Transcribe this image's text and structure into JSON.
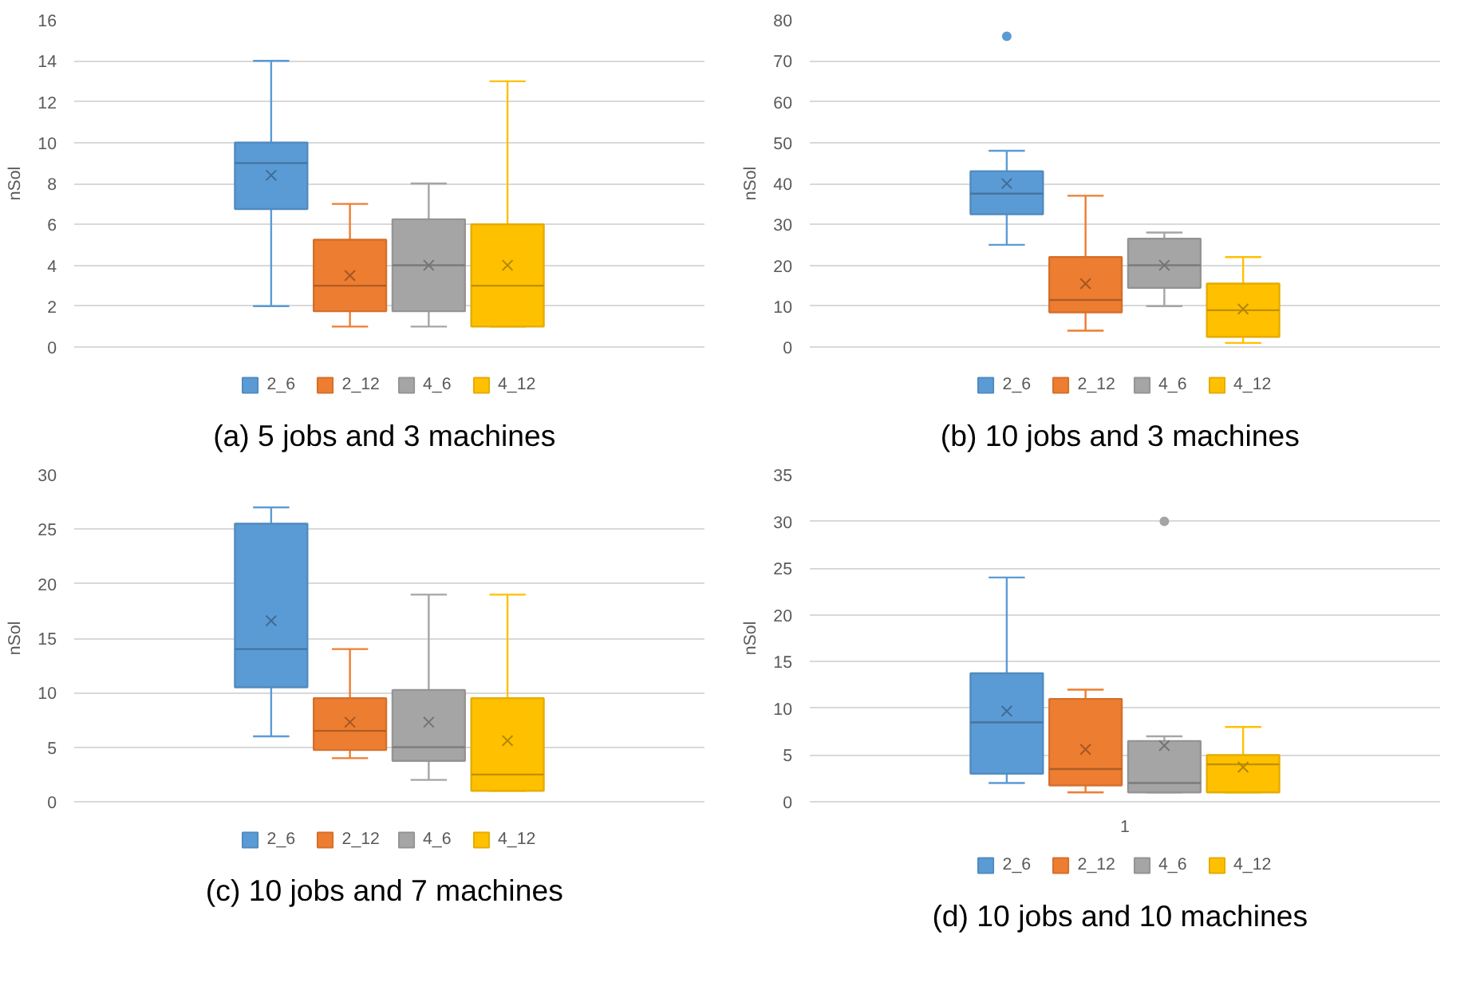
{
  "chart_data": [
    {
      "type": "box",
      "title": "(a)  5 jobs and 3 machines",
      "ylabel": "nSol",
      "categories": [
        null
      ],
      "ylim": [
        0,
        16
      ],
      "yticks": [
        0,
        2,
        4,
        6,
        8,
        10,
        12,
        14,
        16
      ],
      "grid": "y",
      "legend": "bottom",
      "tick_labels": "y",
      "series": [
        {
          "name": "2_6",
          "color": "#5b9bd5",
          "boxes": [
            {
              "low": 2,
              "q1": 6.75,
              "median": 9,
              "q3": 10,
              "high": 14,
              "mean": 8.4
            }
          ]
        },
        {
          "name": "2_12",
          "color": "#ed7d31",
          "boxes": [
            {
              "low": 1,
              "q1": 1.75,
              "median": 3,
              "q3": 5.25,
              "high": 7,
              "mean": 3.5
            }
          ]
        },
        {
          "name": "4_6",
          "color": "#a5a5a5",
          "boxes": [
            {
              "low": 1,
              "q1": 1.75,
              "median": 4,
              "q3": 6.25,
              "high": 8,
              "mean": 4
            }
          ]
        },
        {
          "name": "4_12",
          "color": "#ffc000",
          "boxes": [
            {
              "low": 1,
              "q1": 1,
              "median": 3,
              "q3": 6,
              "high": 13,
              "mean": 4
            }
          ]
        }
      ]
    },
    {
      "type": "box",
      "title": "(b)  10 jobs and 3 machines",
      "ylabel": "nSol",
      "categories": [
        null
      ],
      "ylim": [
        0,
        80
      ],
      "yticks": [
        0,
        10,
        20,
        30,
        40,
        50,
        60,
        70,
        80
      ],
      "grid": "y",
      "legend": "bottom",
      "tick_labels": "y",
      "series": [
        {
          "name": "2_6",
          "color": "#5b9bd5",
          "boxes": [
            {
              "low": 25,
              "q1": 32.5,
              "median": 37.5,
              "q3": 43,
              "high": 48,
              "mean": 40,
              "outliers": [
                76
              ]
            }
          ]
        },
        {
          "name": "2_12",
          "color": "#ed7d31",
          "boxes": [
            {
              "low": 4,
              "q1": 8.5,
              "median": 11.5,
              "q3": 22,
              "high": 37,
              "mean": 15.5
            }
          ]
        },
        {
          "name": "4_6",
          "color": "#a5a5a5",
          "boxes": [
            {
              "low": 10,
              "q1": 14.5,
              "median": 20,
              "q3": 26.5,
              "high": 28,
              "mean": 20
            }
          ]
        },
        {
          "name": "4_12",
          "color": "#ffc000",
          "boxes": [
            {
              "low": 1,
              "q1": 2.5,
              "median": 9,
              "q3": 15.5,
              "high": 22,
              "mean": 9.3
            }
          ]
        }
      ]
    },
    {
      "type": "box",
      "title": "(c)  10 jobs and 7 machines",
      "ylabel": "nSol",
      "categories": [
        null
      ],
      "ylim": [
        0,
        30
      ],
      "yticks": [
        0,
        5,
        10,
        15,
        20,
        25,
        30
      ],
      "grid": "y",
      "legend": "bottom",
      "tick_labels": "y",
      "series": [
        {
          "name": "2_6",
          "color": "#5b9bd5",
          "boxes": [
            {
              "low": 6,
              "q1": 10.5,
              "median": 14,
              "q3": 25.5,
              "high": 27,
              "mean": 16.6
            }
          ]
        },
        {
          "name": "2_12",
          "color": "#ed7d31",
          "boxes": [
            {
              "low": 4,
              "q1": 4.75,
              "median": 6.5,
              "q3": 9.5,
              "high": 14,
              "mean": 7.3
            }
          ]
        },
        {
          "name": "4_6",
          "color": "#a5a5a5",
          "boxes": [
            {
              "low": 2,
              "q1": 3.75,
              "median": 5,
              "q3": 10.25,
              "high": 19,
              "mean": 7.3
            }
          ]
        },
        {
          "name": "4_12",
          "color": "#ffc000",
          "boxes": [
            {
              "low": 1,
              "q1": 1,
              "median": 2.5,
              "q3": 9.5,
              "high": 19,
              "mean": 5.6
            }
          ]
        }
      ]
    },
    {
      "type": "box",
      "title": "(d)  10 jobs and 10 machines",
      "ylabel": "nSol",
      "categories": [
        "1"
      ],
      "ylim": [
        0,
        35
      ],
      "yticks": [
        0,
        5,
        10,
        15,
        20,
        25,
        30,
        35
      ],
      "grid": "y",
      "legend": "bottom",
      "series": [
        {
          "name": "2_6",
          "color": "#5b9bd5",
          "boxes": [
            {
              "low": 2,
              "q1": 3,
              "median": 8.5,
              "q3": 13.75,
              "high": 24,
              "mean": 9.7
            }
          ]
        },
        {
          "name": "2_12",
          "color": "#ed7d31",
          "boxes": [
            {
              "low": 1,
              "q1": 1.75,
              "median": 3.5,
              "q3": 11,
              "high": 12,
              "mean": 5.6
            }
          ]
        },
        {
          "name": "4_6",
          "color": "#a5a5a5",
          "boxes": [
            {
              "low": 1,
              "q1": 1,
              "median": 2,
              "q3": 6.5,
              "high": 7,
              "mean": 6,
              "outliers": [
                30
              ]
            }
          ]
        },
        {
          "name": "4_12",
          "color": "#ffc000",
          "boxes": [
            {
              "low": 1,
              "q1": 1,
              "median": 4,
              "q3": 5,
              "high": 8,
              "mean": 3.7
            }
          ]
        }
      ]
    }
  ]
}
